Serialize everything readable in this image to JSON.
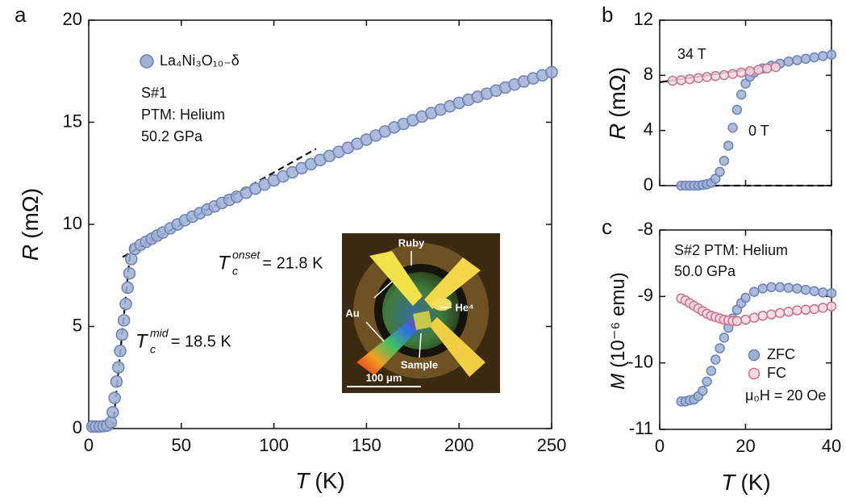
{
  "chart_data": [
    {
      "type": "scatter",
      "panel": "a",
      "xlabel": {
        "symbol": "T",
        "unit": "(K)"
      },
      "ylabel": {
        "symbol": "R",
        "unit": "(mΩ)"
      },
      "xlim": [
        0,
        250
      ],
      "xticks": [
        0,
        50,
        100,
        150,
        200,
        250
      ],
      "ylim": [
        0,
        20
      ],
      "yticks": [
        0,
        5,
        10,
        15,
        20
      ],
      "legend": "upper left",
      "series": [
        {
          "name": "La₄Ni₃O₁₀₋δ",
          "color": "#9fb0d4",
          "edgecolor": "#6a82b5",
          "x": [
            2,
            4,
            6,
            8,
            10,
            12,
            13,
            14,
            15,
            16,
            17,
            18,
            19,
            20,
            21,
            22,
            23,
            25,
            28,
            31,
            34,
            37,
            40,
            44,
            48,
            52,
            56,
            60,
            64,
            68,
            72,
            76,
            80,
            85,
            90,
            95,
            100,
            105,
            110,
            115,
            120,
            125,
            130,
            135,
            140,
            145,
            150,
            155,
            160,
            165,
            170,
            175,
            180,
            185,
            190,
            195,
            200,
            205,
            210,
            215,
            220,
            225,
            230,
            235,
            240,
            245,
            250
          ],
          "values": [
            0.1,
            0.1,
            0.1,
            0.12,
            0.15,
            0.3,
            0.8,
            1.5,
            2.3,
            3.0,
            3.8,
            4.6,
            5.3,
            6.1,
            6.9,
            7.6,
            8.3,
            8.8,
            9.0,
            9.15,
            9.3,
            9.45,
            9.6,
            9.8,
            10.0,
            10.2,
            10.38,
            10.55,
            10.72,
            10.88,
            11.05,
            11.2,
            11.35,
            11.55,
            11.75,
            11.95,
            12.15,
            12.35,
            12.55,
            12.75,
            12.95,
            13.15,
            13.35,
            13.55,
            13.75,
            13.95,
            14.15,
            14.35,
            14.55,
            14.75,
            14.92,
            15.1,
            15.28,
            15.45,
            15.62,
            15.78,
            15.95,
            16.1,
            16.25,
            16.4,
            16.55,
            16.7,
            16.85,
            17.0,
            17.15,
            17.3,
            17.45
          ]
        }
      ],
      "fit_lines": [
        {
          "x": [
            13,
            23
          ],
          "y": [
            0,
            9.2
          ],
          "dashed": true
        },
        {
          "x": [
            18.3,
            122.8
          ],
          "y": [
            8.4,
            13.7
          ],
          "dashed": true
        }
      ],
      "texts": [
        "S#1",
        "PTM: Helium",
        "50.2 GPa"
      ],
      "annotations": [
        {
          "symbol": "T",
          "sub": "c",
          "sup": "onset",
          "text": "= 21.8 K"
        },
        {
          "symbol": "T",
          "sub": "c",
          "sup": "mid",
          "text": "= 18.5 K"
        }
      ],
      "inset": {
        "labels": [
          "Ruby",
          "Au",
          "He⁴",
          "Sample"
        ],
        "scale_bar": "100 μm"
      }
    },
    {
      "type": "scatter",
      "panel": "b",
      "ylabel": {
        "symbol": "R",
        "unit": "(mΩ)"
      },
      "xlim": [
        0,
        40
      ],
      "xticks": [
        0,
        20,
        40
      ],
      "xtick_labels": false,
      "ylim": [
        0,
        12
      ],
      "yticks": [
        0,
        4,
        8,
        12
      ],
      "series": [
        {
          "name": "0 T",
          "color": "#9fb0d4",
          "edgecolor": "#6a82b5",
          "x": [
            5,
            6,
            7,
            8,
            9,
            10,
            11,
            12,
            13,
            14,
            15,
            16,
            17,
            18,
            19,
            20,
            21,
            22,
            24,
            26,
            28,
            30,
            32,
            34,
            36,
            38,
            40
          ],
          "values": [
            0,
            0,
            0,
            0,
            0,
            0.05,
            0.1,
            0.2,
            0.5,
            1.0,
            1.8,
            2.9,
            4.2,
            5.5,
            6.6,
            7.4,
            7.9,
            8.2,
            8.5,
            8.7,
            8.85,
            9.0,
            9.1,
            9.2,
            9.3,
            9.4,
            9.5
          ]
        },
        {
          "name": "34 T",
          "color": "#f4dbe2",
          "edgecolor": "#c97089",
          "x": [
            3,
            5,
            7,
            9,
            11,
            13,
            15,
            17,
            19,
            21,
            23,
            25,
            27
          ],
          "values": [
            7.6,
            7.65,
            7.72,
            7.8,
            7.88,
            7.95,
            8.02,
            8.1,
            8.2,
            8.3,
            8.4,
            8.5,
            8.6
          ]
        }
      ],
      "fit_lines": [
        {
          "x": [
            0,
            27
          ],
          "y": [
            7.5,
            8.7
          ],
          "dashed": false
        },
        {
          "x": [
            5,
            40
          ],
          "y": [
            0,
            0
          ],
          "dashed": true
        }
      ]
    },
    {
      "type": "scatter",
      "panel": "c",
      "xlabel": {
        "symbol": "T",
        "unit": "(K)"
      },
      "ylabel": {
        "symbol": "M",
        "unit": "(10⁻⁶ emu)"
      },
      "xlim": [
        0,
        40
      ],
      "xticks": [
        0,
        20,
        40
      ],
      "ylim": [
        -11,
        -8
      ],
      "yticks": [
        -11,
        -10,
        -9,
        -8
      ],
      "legend": "lower right",
      "series": [
        {
          "name": "ZFC",
          "color": "#9fb0d4",
          "edgecolor": "#6a82b5",
          "x": [
            5,
            6,
            7,
            8,
            9,
            10,
            11,
            12,
            13,
            14,
            15,
            16,
            17,
            18,
            19,
            20,
            22,
            24,
            26,
            28,
            30,
            32,
            34,
            36,
            38,
            40
          ],
          "values": [
            -10.58,
            -10.58,
            -10.56,
            -10.55,
            -10.5,
            -10.42,
            -10.28,
            -10.12,
            -9.95,
            -9.78,
            -9.62,
            -9.47,
            -9.33,
            -9.2,
            -9.1,
            -9.02,
            -8.93,
            -8.88,
            -8.86,
            -8.86,
            -8.87,
            -8.88,
            -8.9,
            -8.92,
            -8.94,
            -8.95
          ]
        },
        {
          "name": "FC",
          "color": "#f4dbe2",
          "edgecolor": "#c97089",
          "x": [
            5,
            6,
            7,
            8,
            9,
            10,
            11,
            12,
            13,
            14,
            15,
            16,
            17,
            18,
            20,
            22,
            24,
            26,
            28,
            30,
            32,
            34,
            36,
            38,
            40
          ],
          "values": [
            -9.03,
            -9.06,
            -9.1,
            -9.14,
            -9.18,
            -9.22,
            -9.26,
            -9.29,
            -9.31,
            -9.33,
            -9.35,
            -9.36,
            -9.37,
            -9.37,
            -9.35,
            -9.32,
            -9.29,
            -9.27,
            -9.25,
            -9.23,
            -9.21,
            -9.2,
            -9.19,
            -9.17,
            -9.15
          ]
        }
      ],
      "texts": [
        "S#2  PTM: Helium",
        "50.0 GPa",
        "μ₀H = 20 Oe"
      ]
    }
  ]
}
